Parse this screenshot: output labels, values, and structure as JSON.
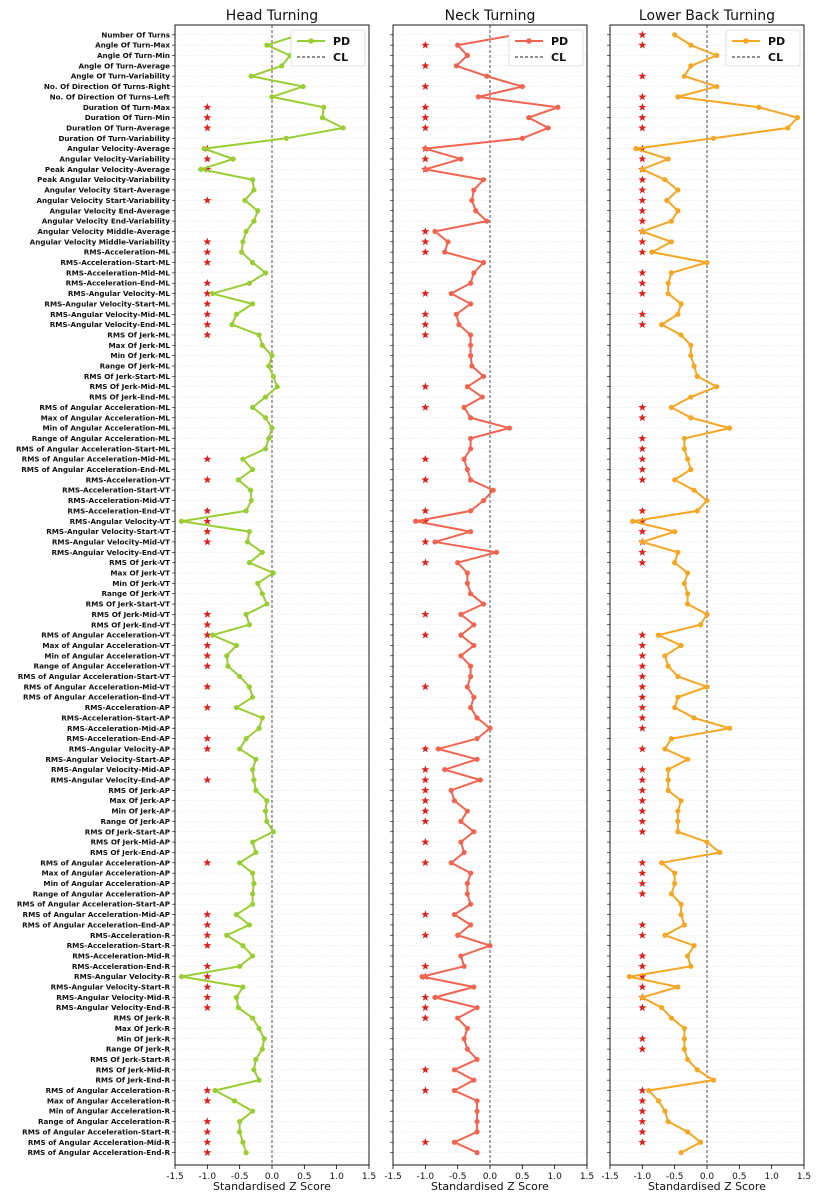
{
  "chart_data": {
    "type": "line",
    "xlabel": "Standardised Z Score",
    "xlim": [
      -1.5,
      1.5
    ],
    "xticks": [
      "-1.5",
      "-1.0",
      "-0.5",
      "0.0",
      "0.5",
      "1.0",
      "1.5"
    ],
    "legend": {
      "pd": "PD",
      "cl": "CL"
    },
    "features": [
      "Number Of Turns",
      "Angle Of Turn-Max",
      "Angle Of Turn-Min",
      "Angle Of Turn-Average",
      "Angle Of Turn-Variability",
      "No. Of Direction Of Turns-Right",
      "No. Of Direction Of Turns-Left",
      "Duration Of Turn-Max",
      "Duration Of Turn-Min",
      "Duration Of Turn-Average",
      "Duration Of Turn-Variability",
      "Angular Velocity-Average",
      "Angular Velocity-Variability",
      "Peak Angular Velocity-Average",
      "Peak Angular Velocity-Variability",
      "Angular Velocity Start-Average",
      "Angular Velocity Start-Variability",
      "Angular Velocity End-Average",
      "Angular Velocity End-Variability",
      "Angular Velocity Middle-Average",
      "Angular Velocity Middle-Variability",
      "RMS-Acceleration-ML",
      "RMS-Acceleration-Start-ML",
      "RMS-Acceleration-Mid-ML",
      "RMS-Acceleration-End-ML",
      "RMS-Angular Velocity-ML",
      "RMS-Angular Velocity-Start-ML",
      "RMS-Angular Velocity-Mid-ML",
      "RMS-Angular Velocity-End-ML",
      "RMS Of Jerk-ML",
      "Max Of Jerk-ML",
      "Min Of Jerk-ML",
      "Range Of Jerk-ML",
      "RMS Of Jerk-Start-ML",
      "RMS Of Jerk-Mid-ML",
      "RMS Of Jerk-End-ML",
      "RMS of Angular Acceleration-ML",
      "Max of Angular Acceleration-ML",
      "Min of Angular Acceleration-ML",
      "Range of Angular Acceleration-ML",
      "RMS of Angular Acceleration-Start-ML",
      "RMS of Angular Acceleration-Mid-ML",
      "RMS of Angular Acceleration-End-ML",
      "RMS-Acceleration-VT",
      "RMS-Acceleration-Start-VT",
      "RMS-Acceleration-Mid-VT",
      "RMS-Acceleration-End-VT",
      "RMS-Angular Velocity-VT",
      "RMS-Angular Velocity-Start-VT",
      "RMS-Angular Velocity-Mid-VT",
      "RMS-Angular Velocity-End-VT",
      "RMS Of Jerk-VT",
      "Max Of Jerk-VT",
      "Min Of Jerk-VT",
      "Range Of Jerk-VT",
      "RMS Of Jerk-Start-VT",
      "RMS Of Jerk-Mid-VT",
      "RMS Of Jerk-End-VT",
      "RMS of Angular Acceleration-VT",
      "Max of Angular Acceleration-VT",
      "Min of Angular Acceleration-VT",
      "Range of Angular Acceleration-VT",
      "RMS of Angular Acceleration-Start-VT",
      "RMS of Angular Acceleration-Mid-VT",
      "RMS of Angular Acceleration-End-VT",
      "RMS-Acceleration-AP",
      "RMS-Acceleration-Start-AP",
      "RMS-Acceleration-Mid-AP",
      "RMS-Acceleration-End-AP",
      "RMS-Angular Velocity-AP",
      "RMS-Angular Velocity-Start-AP",
      "RMS-Angular Velocity-Mid-AP",
      "RMS-Angular Velocity-End-AP",
      "RMS Of Jerk-AP",
      "Max Of Jerk-AP",
      "Min Of Jerk-AP",
      "Range Of Jerk-AP",
      "RMS Of Jerk-Start-AP",
      "RMS Of Jerk-Mid-AP",
      "RMS Of Jerk-End-AP",
      "RMS of Angular Acceleration-AP",
      "Max of Angular Acceleration-AP",
      "Min of Angular Acceleration-AP",
      "Range of Angular Acceleration-AP",
      "RMS of Angular Acceleration-Start-AP",
      "RMS of Angular Acceleration-Mid-AP",
      "RMS of Angular Acceleration-End-AP",
      "RMS-Acceleration-R",
      "RMS-Acceleration-Start-R",
      "RMS-Acceleration-Mid-R",
      "RMS-Acceleration-End-R",
      "RMS-Angular Velocity-R",
      "RMS-Angular Velocity-Start-R",
      "RMS-Angular Velocity-Mid-R",
      "RMS-Angular Velocity-End-R",
      "RMS Of Jerk-R",
      "Max Of Jerk-R",
      "Min Of Jerk-R",
      "Range Of Jerk-R",
      "RMS Of Jerk-Start-R",
      "RMS Of Jerk-Mid-R",
      "RMS Of Jerk-End-R",
      "RMS of Angular Acceleration-R",
      "Max of Angular Acceleration-R",
      "Min of Angular Acceleration-R",
      "Range of Angular Acceleration-R",
      "RMS of Angular Acceleration-Start-R",
      "RMS of Angular Acceleration-Mid-R",
      "RMS of Angular Acceleration-End-R"
    ],
    "panels": [
      {
        "title": "Head Turning",
        "color": "#9ACD32",
        "values": [
          0.42,
          -0.08,
          0.28,
          0.15,
          -0.32,
          0.48,
          0.0,
          0.8,
          0.78,
          1.1,
          0.22,
          -1.05,
          -0.6,
          -1.1,
          -0.3,
          -0.28,
          -0.42,
          -0.22,
          -0.28,
          -0.4,
          -0.45,
          -0.47,
          -0.3,
          -0.1,
          -0.35,
          -0.92,
          -0.3,
          -0.55,
          -0.62,
          -0.2,
          -0.15,
          0.0,
          -0.05,
          0.02,
          0.08,
          -0.1,
          -0.3,
          -0.1,
          0.0,
          -0.05,
          -0.1,
          -0.45,
          -0.3,
          -0.52,
          -0.33,
          -0.32,
          -0.4,
          -1.4,
          -0.35,
          -0.38,
          -0.15,
          -0.35,
          0.02,
          -0.22,
          -0.15,
          -0.08,
          -0.4,
          -0.35,
          -0.92,
          -0.55,
          -0.7,
          -0.68,
          -0.5,
          -0.35,
          -0.3,
          -0.55,
          -0.15,
          -0.2,
          -0.4,
          -0.5,
          -0.25,
          -0.3,
          -0.28,
          -0.25,
          -0.08,
          -0.1,
          -0.08,
          0.02,
          -0.3,
          -0.25,
          -0.5,
          -0.3,
          -0.28,
          -0.3,
          -0.3,
          -0.55,
          -0.35,
          -0.7,
          -0.45,
          -0.3,
          -0.5,
          -1.4,
          -0.45,
          -0.55,
          -0.52,
          -0.3,
          -0.2,
          -0.12,
          -0.15,
          -0.25,
          -0.28,
          -0.2,
          -0.88,
          -0.58,
          -0.3,
          -0.5,
          -0.5,
          -0.45,
          -0.4
        ],
        "stars": [
          0,
          0,
          0,
          0,
          0,
          0,
          0,
          1,
          1,
          1,
          0,
          1,
          1,
          1,
          0,
          0,
          1,
          0,
          0,
          0,
          1,
          1,
          1,
          0,
          1,
          1,
          1,
          1,
          1,
          1,
          0,
          0,
          0,
          0,
          0,
          0,
          0,
          0,
          0,
          0,
          0,
          1,
          0,
          1,
          0,
          0,
          1,
          1,
          1,
          1,
          0,
          0,
          0,
          0,
          0,
          0,
          1,
          1,
          1,
          1,
          1,
          1,
          0,
          1,
          0,
          1,
          0,
          0,
          1,
          1,
          0,
          0,
          1,
          0,
          0,
          0,
          0,
          0,
          0,
          0,
          1,
          0,
          0,
          0,
          0,
          1,
          1,
          1,
          1,
          0,
          1,
          1,
          1,
          1,
          1,
          0,
          0,
          0,
          0,
          0,
          0,
          0,
          1,
          1,
          0,
          1,
          1,
          1,
          1
        ]
      },
      {
        "title": "Neck Turning",
        "color": "#F26450",
        "values": [
          0.4,
          -0.5,
          -0.35,
          -0.52,
          -0.05,
          0.5,
          -0.18,
          1.05,
          0.6,
          0.9,
          0.5,
          -1.0,
          -0.45,
          -1.0,
          -0.1,
          -0.25,
          -0.28,
          -0.22,
          -0.05,
          -0.85,
          -0.65,
          -0.7,
          -0.1,
          -0.25,
          -0.3,
          -0.6,
          -0.3,
          -0.52,
          -0.48,
          -0.3,
          -0.3,
          -0.3,
          -0.28,
          -0.1,
          -0.35,
          -0.12,
          -0.4,
          -0.3,
          0.3,
          -0.3,
          -0.3,
          -0.4,
          -0.35,
          -0.3,
          0.05,
          -0.1,
          -0.3,
          -1.15,
          -0.3,
          -0.85,
          0.1,
          -0.5,
          -0.35,
          -0.35,
          -0.3,
          -0.1,
          -0.45,
          -0.25,
          -0.45,
          -0.25,
          -0.45,
          -0.3,
          -0.3,
          -0.35,
          -0.25,
          -0.3,
          -0.2,
          0.0,
          -0.2,
          -0.8,
          -0.2,
          -0.7,
          -0.15,
          -0.6,
          -0.55,
          -0.35,
          -0.45,
          -0.25,
          -0.45,
          -0.4,
          -0.6,
          -0.3,
          -0.35,
          -0.35,
          -0.3,
          -0.55,
          -0.3,
          -0.5,
          0.0,
          -0.45,
          -0.4,
          -1.05,
          -0.25,
          -0.85,
          -0.2,
          -0.5,
          -0.35,
          -0.4,
          -0.35,
          -0.2,
          -0.55,
          -0.25,
          -0.55,
          -0.2,
          -0.2,
          -0.2,
          -0.2,
          -0.55,
          -0.2
        ],
        "stars": [
          0,
          1,
          0,
          1,
          0,
          1,
          0,
          1,
          1,
          1,
          0,
          1,
          1,
          1,
          0,
          0,
          0,
          0,
          0,
          1,
          1,
          1,
          0,
          0,
          0,
          1,
          0,
          1,
          1,
          1,
          0,
          0,
          0,
          0,
          1,
          0,
          1,
          0,
          0,
          0,
          0,
          1,
          0,
          1,
          0,
          0,
          1,
          1,
          0,
          1,
          0,
          1,
          0,
          0,
          0,
          0,
          1,
          0,
          1,
          0,
          0,
          0,
          0,
          1,
          0,
          0,
          0,
          0,
          0,
          1,
          0,
          1,
          1,
          1,
          1,
          1,
          1,
          0,
          1,
          0,
          1,
          0,
          0,
          0,
          0,
          1,
          0,
          1,
          0,
          0,
          1,
          1,
          0,
          1,
          1,
          1,
          0,
          0,
          0,
          0,
          1,
          0,
          1,
          0,
          0,
          0,
          0,
          1,
          0
        ]
      },
      {
        "title": "Lower Back Turning",
        "color": "#F5A623",
        "values": [
          -0.5,
          -0.25,
          0.15,
          -0.25,
          -0.35,
          0.15,
          -0.45,
          0.8,
          1.4,
          1.25,
          0.1,
          -1.1,
          -0.6,
          -1.0,
          -0.65,
          -0.45,
          -0.62,
          -0.45,
          -0.55,
          -1.0,
          -0.55,
          -0.85,
          0.0,
          -0.55,
          -0.6,
          -0.6,
          -0.4,
          -0.45,
          -0.7,
          -0.4,
          -0.25,
          -0.25,
          -0.2,
          -0.15,
          0.15,
          -0.25,
          -0.55,
          -0.25,
          0.35,
          -0.35,
          -0.35,
          -0.3,
          -0.25,
          -0.5,
          -0.2,
          0.0,
          -0.15,
          -1.15,
          -0.5,
          -1.0,
          -0.45,
          -0.5,
          -0.3,
          -0.35,
          -0.3,
          -0.3,
          0.0,
          -0.1,
          -0.75,
          -0.4,
          -0.65,
          -0.6,
          -0.45,
          0.0,
          -0.45,
          -0.5,
          -0.2,
          0.35,
          -0.55,
          -0.65,
          -0.3,
          -0.6,
          -0.6,
          -0.6,
          -0.4,
          -0.45,
          -0.45,
          -0.45,
          0.0,
          0.2,
          -0.7,
          -0.5,
          -0.5,
          -0.55,
          -0.4,
          -0.4,
          -0.35,
          -0.65,
          -0.2,
          -0.3,
          -0.25,
          -1.2,
          -0.45,
          -1.0,
          -0.7,
          -0.55,
          -0.35,
          -0.35,
          -0.35,
          -0.3,
          -0.15,
          0.1,
          -0.9,
          -0.75,
          -0.65,
          -0.6,
          -0.3,
          -0.1,
          -0.4
        ],
        "stars": [
          1,
          1,
          0,
          0,
          1,
          0,
          1,
          1,
          1,
          1,
          0,
          1,
          1,
          1,
          1,
          1,
          1,
          1,
          1,
          1,
          1,
          1,
          0,
          1,
          1,
          1,
          0,
          1,
          1,
          0,
          0,
          0,
          0,
          0,
          0,
          0,
          1,
          1,
          0,
          1,
          1,
          1,
          1,
          1,
          0,
          0,
          1,
          1,
          1,
          1,
          1,
          1,
          0,
          0,
          0,
          0,
          0,
          0,
          1,
          1,
          1,
          1,
          1,
          1,
          1,
          1,
          1,
          1,
          0,
          1,
          0,
          1,
          1,
          1,
          1,
          1,
          1,
          1,
          0,
          0,
          1,
          1,
          1,
          1,
          0,
          0,
          1,
          1,
          0,
          1,
          1,
          1,
          1,
          1,
          1,
          0,
          0,
          1,
          1,
          0,
          0,
          0,
          1,
          1,
          1,
          1,
          1,
          1,
          0
        ]
      }
    ]
  }
}
